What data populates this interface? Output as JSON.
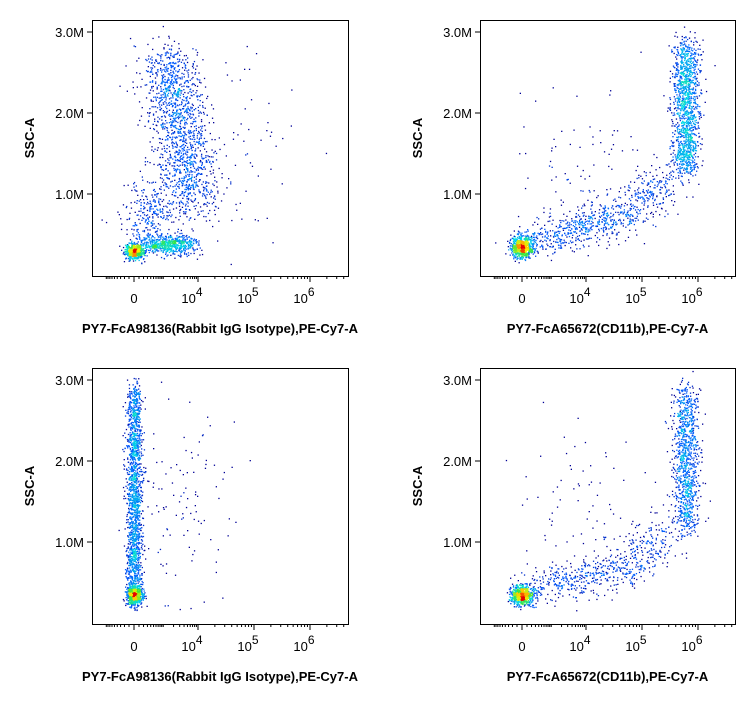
{
  "chart_data": [
    {
      "type": "scatter",
      "xlabel": "PY7-FcA98136(Rabbit IgG Isotype),PE-Cy7-A",
      "ylabel": "SSC-A",
      "yticks": [
        {
          "v": 1.0,
          "label": "1.0M"
        },
        {
          "v": 2.0,
          "label": "2.0M"
        },
        {
          "v": 3.0,
          "label": "3.0M"
        }
      ],
      "xticks": [
        {
          "v": 0,
          "base": "0",
          "exp": ""
        },
        {
          "v": 10000,
          "base": "10",
          "exp": "4"
        },
        {
          "v": 100000,
          "base": "10",
          "exp": "5"
        },
        {
          "v": 1000000,
          "base": "10",
          "exp": "6"
        }
      ],
      "xscale": "biexponential",
      "ylim_millions": [
        0,
        3.15
      ],
      "color": "density (jet)",
      "populations": [
        {
          "from": [
            0,
            0.3
          ],
          "to": [
            0,
            0.3
          ],
          "sx": 0.08,
          "sy": 0.05,
          "n": 500
        },
        {
          "from": [
            300,
            0.38
          ],
          "to": [
            5000,
            0.38
          ],
          "sx": 0.15,
          "sy": 0.06,
          "n": 600
        },
        {
          "from": [
            1200,
            2.7
          ],
          "to": [
            8000,
            0.9
          ],
          "sx": 0.25,
          "sy": 0.15,
          "n": 1400
        },
        {
          "from": [
            0,
            0.6
          ],
          "to": [
            1000,
            0.9
          ],
          "sx": 0.2,
          "sy": 0.2,
          "n": 300
        },
        {
          "from": [
            20000,
            1.5
          ],
          "to": [
            20000,
            1.5
          ],
          "sx": 0.8,
          "sy": 0.6,
          "n": 80
        }
      ]
    },
    {
      "type": "scatter",
      "xlabel": "PY7-FcA65672(CD11b),PE-Cy7-A",
      "ylabel": "SSC-A",
      "yticks": [
        {
          "v": 1.0,
          "label": "1.0M"
        },
        {
          "v": 2.0,
          "label": "2.0M"
        },
        {
          "v": 3.0,
          "label": "3.0M"
        }
      ],
      "xticks": [
        {
          "v": 0,
          "base": "0",
          "exp": ""
        },
        {
          "v": 10000,
          "base": "10",
          "exp": "4"
        },
        {
          "v": 100000,
          "base": "10",
          "exp": "5"
        },
        {
          "v": 1000000,
          "base": "10",
          "exp": "6"
        }
      ],
      "xscale": "biexponential",
      "ylim_millions": [
        0,
        3.15
      ],
      "color": "density (jet)",
      "populations": [
        {
          "from": [
            0,
            0.35
          ],
          "to": [
            0,
            0.35
          ],
          "sx": 0.1,
          "sy": 0.07,
          "n": 700
        },
        {
          "from": [
            500,
            0.45
          ],
          "to": [
            50000,
            0.75
          ],
          "sx": 0.25,
          "sy": 0.12,
          "n": 500
        },
        {
          "from": [
            50000,
            0.8
          ],
          "to": [
            300000,
            1.2
          ],
          "sx": 0.2,
          "sy": 0.15,
          "n": 250
        },
        {
          "from": [
            600000,
            1.3
          ],
          "to": [
            600000,
            2.85
          ],
          "sx": 0.12,
          "sy": 0.1,
          "n": 1300
        },
        {
          "from": [
            10000,
            1.5
          ],
          "to": [
            10000,
            1.5
          ],
          "sx": 0.7,
          "sy": 0.5,
          "n": 80
        }
      ]
    },
    {
      "type": "scatter",
      "xlabel": "PY7-FcA98136(Rabbit IgG Isotype),PE-Cy7-A",
      "ylabel": "SSC-A",
      "yticks": [
        {
          "v": 1.0,
          "label": "1.0M"
        },
        {
          "v": 2.0,
          "label": "2.0M"
        },
        {
          "v": 3.0,
          "label": "3.0M"
        }
      ],
      "xticks": [
        {
          "v": 0,
          "base": "0",
          "exp": ""
        },
        {
          "v": 10000,
          "base": "10",
          "exp": "4"
        },
        {
          "v": 100000,
          "base": "10",
          "exp": "5"
        },
        {
          "v": 1000000,
          "base": "10",
          "exp": "6"
        }
      ],
      "xscale": "biexponential",
      "ylim_millions": [
        0,
        3.15
      ],
      "color": "density (jet)",
      "populations": [
        {
          "from": [
            0,
            0.35
          ],
          "to": [
            0,
            0.35
          ],
          "sx": 0.07,
          "sy": 0.06,
          "n": 700
        },
        {
          "from": [
            0,
            0.5
          ],
          "to": [
            0,
            2.85
          ],
          "sx": 0.07,
          "sy": 0.1,
          "n": 1600
        },
        {
          "from": [
            3000,
            1.5
          ],
          "to": [
            3000,
            1.5
          ],
          "sx": 0.5,
          "sy": 0.7,
          "n": 120
        }
      ]
    },
    {
      "type": "scatter",
      "xlabel": "PY7-FcA65672(CD11b),PE-Cy7-A",
      "ylabel": "SSC-A",
      "yticks": [
        {
          "v": 1.0,
          "label": "1.0M"
        },
        {
          "v": 2.0,
          "label": "2.0M"
        },
        {
          "v": 3.0,
          "label": "3.0M"
        }
      ],
      "xticks": [
        {
          "v": 0,
          "base": "0",
          "exp": ""
        },
        {
          "v": 10000,
          "base": "10",
          "exp": "4"
        },
        {
          "v": 100000,
          "base": "10",
          "exp": "5"
        },
        {
          "v": 1000000,
          "base": "10",
          "exp": "6"
        }
      ],
      "xscale": "biexponential",
      "ylim_millions": [
        0,
        3.15
      ],
      "color": "density (jet)",
      "populations": [
        {
          "from": [
            0,
            0.35
          ],
          "to": [
            0,
            0.35
          ],
          "sx": 0.1,
          "sy": 0.06,
          "n": 700
        },
        {
          "from": [
            500,
            0.45
          ],
          "to": [
            50000,
            0.7
          ],
          "sx": 0.25,
          "sy": 0.12,
          "n": 400
        },
        {
          "from": [
            50000,
            0.75
          ],
          "to": [
            300000,
            1.1
          ],
          "sx": 0.2,
          "sy": 0.15,
          "n": 200
        },
        {
          "from": [
            600000,
            1.2
          ],
          "to": [
            600000,
            2.85
          ],
          "sx": 0.12,
          "sy": 0.1,
          "n": 1000
        },
        {
          "from": [
            10000,
            1.5
          ],
          "to": [
            10000,
            1.5
          ],
          "sx": 0.7,
          "sy": 0.5,
          "n": 70
        }
      ]
    }
  ]
}
